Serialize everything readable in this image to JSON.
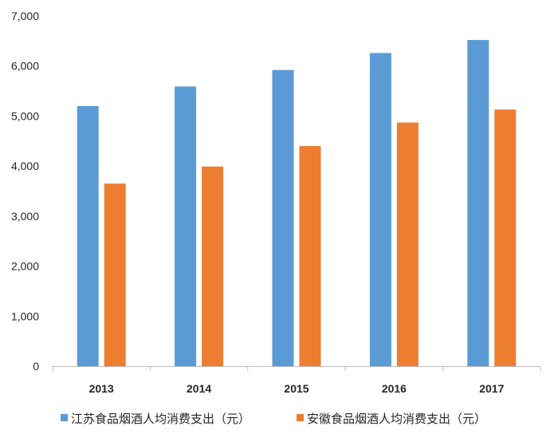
{
  "chart_data": {
    "type": "bar",
    "title": "",
    "xlabel": "",
    "ylabel": "",
    "categories": [
      "2013",
      "2014",
      "2015",
      "2016",
      "2017"
    ],
    "ylim": [
      0,
      7000
    ],
    "yticks": [
      0,
      1000,
      2000,
      3000,
      4000,
      5000,
      6000,
      7000
    ],
    "ytick_labels": [
      "0",
      "1,000",
      "2,000",
      "3,000",
      "4,000",
      "5,000",
      "6,000",
      "7,000"
    ],
    "grid": false,
    "legend_position": "bottom",
    "series": [
      {
        "name": "江苏食品烟酒人均消费支出（元）",
        "color": "#5B9BD5",
        "values": [
          5200,
          5590,
          5920,
          6260,
          6520
        ]
      },
      {
        "name": "安徽食品烟酒人均消费支出（元）",
        "color": "#ED7D31",
        "values": [
          3650,
          3990,
          4400,
          4870,
          5130
        ]
      }
    ]
  }
}
